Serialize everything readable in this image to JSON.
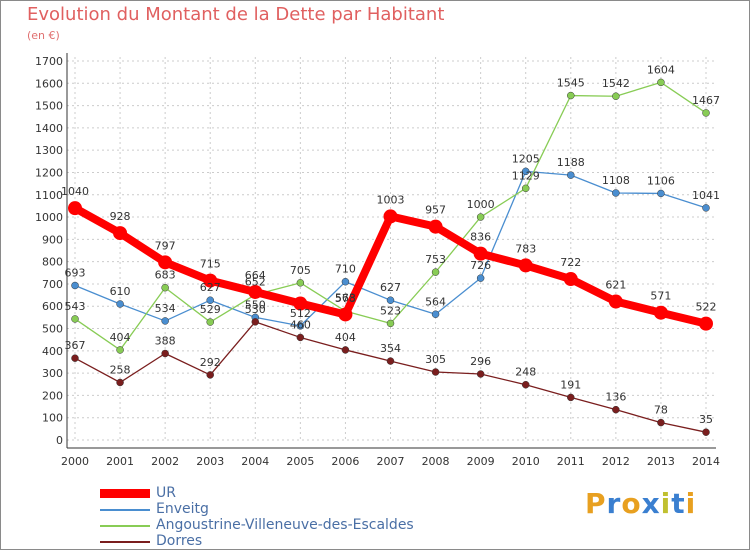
{
  "title": "Evolution du Montant de la Dette par Habitant",
  "unit": "(en €)",
  "brand": "Proxiti",
  "colors": {
    "title": "#e06060",
    "grid": "#cccccc",
    "axis": "#333333",
    "brand_letters": [
      "#e8a020",
      "#3a7fd0",
      "#e8a020",
      "#3a7fd0",
      "#c0c030",
      "#3a7fd0",
      "#e8a020"
    ]
  },
  "chart_data": {
    "type": "line",
    "title": "Evolution du Montant de la Dette par Habitant",
    "ylabel": "(en €)",
    "xlabel": "",
    "ylim": [
      0,
      1700
    ],
    "yticks": [
      0,
      100,
      200,
      300,
      400,
      500,
      600,
      700,
      800,
      900,
      1000,
      1100,
      1200,
      1300,
      1400,
      1500,
      1600,
      1700
    ],
    "x": [
      "2000",
      "2001",
      "2002",
      "2003",
      "2004",
      "2005",
      "2006",
      "2007",
      "2008",
      "2009",
      "2010",
      "2011",
      "2012",
      "2013",
      "2014"
    ],
    "grid": "horizontal-dashed",
    "legend_position": "bottom-left",
    "series": [
      {
        "name": "UR",
        "color": "#ff0000",
        "emphasis": true,
        "values": [
          1040,
          928,
          797,
          715,
          664,
          612,
          563,
          1003,
          957,
          836,
          783,
          722,
          621,
          571,
          522
        ],
        "labels": [
          "1040",
          "928",
          "797",
          "715",
          "664",
          "",
          "563",
          "1003",
          "957",
          "836",
          "783",
          "722",
          "621",
          "571",
          "522"
        ]
      },
      {
        "name": "Enveitg",
        "color": "#4a8ed0",
        "values": [
          693,
          610,
          534,
          627,
          550,
          512,
          710,
          627,
          564,
          726,
          1205,
          1188,
          1108,
          1106,
          1041
        ],
        "labels": [
          "693",
          "610",
          "534",
          "627",
          "550",
          "512",
          "710",
          "627",
          "564",
          "726",
          "1205",
          "1188",
          "1108",
          "1106",
          "1041"
        ]
      },
      {
        "name": "Angoustrine-Villeneuve-des-Escaldes",
        "color": "#88cc55",
        "values": [
          543,
          404,
          683,
          529,
          652,
          705,
          578,
          523,
          753,
          1000,
          1129,
          1545,
          1542,
          1604,
          1467
        ],
        "labels": [
          "543",
          "404",
          "683",
          "529",
          "652",
          "705",
          "578",
          "523",
          "753",
          "1000",
          "1129",
          "1545",
          "1542",
          "1604",
          "1467"
        ]
      },
      {
        "name": "Dorres",
        "color": "#7a1e1e",
        "values": [
          367,
          258,
          388,
          292,
          530,
          460,
          404,
          354,
          305,
          296,
          248,
          191,
          136,
          78,
          35
        ],
        "labels": [
          "367",
          "258",
          "388",
          "292",
          "530",
          "460",
          "404",
          "354",
          "305",
          "296",
          "248",
          "191",
          "136",
          "78",
          "35"
        ]
      }
    ]
  }
}
